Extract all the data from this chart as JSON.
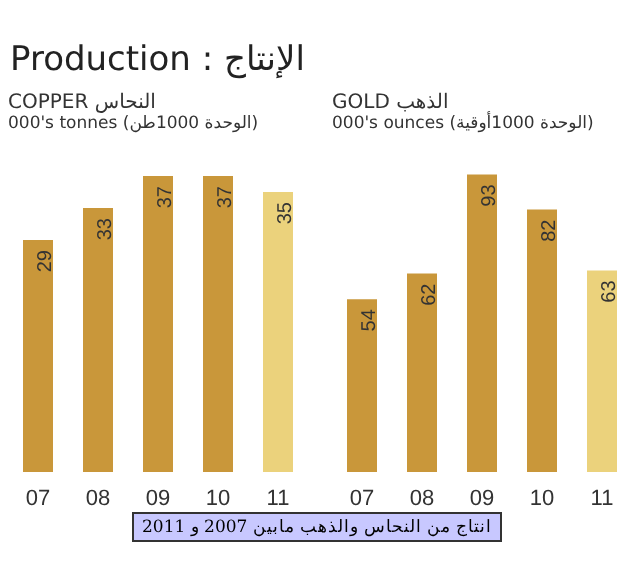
{
  "chart_data": [
    {
      "type": "bar",
      "title": "Production : الإنتاج",
      "subtitle": "COPPER  النحاس",
      "ylabel": "000's tonnes  (الوحدة 1000طن)",
      "categories": [
        "07",
        "08",
        "09",
        "10",
        "11"
      ],
      "values": [
        29,
        33,
        37,
        37,
        35
      ],
      "colors": [
        "#c9973a",
        "#c9973a",
        "#c9973a",
        "#c9973a",
        "#ebd27c"
      ],
      "data_labels": true,
      "annotations": [
        "انتاج من النحاس والذهب مابين 2007 و 2011"
      ]
    },
    {
      "type": "bar",
      "subtitle": "GOLD  الذهب",
      "ylabel": "000's ounces  (الوحدة 1000أوقية)",
      "categories": [
        "07",
        "08",
        "09",
        "10",
        "11"
      ],
      "values": [
        54,
        62,
        93,
        82,
        63
      ],
      "colors": [
        "#c9973a",
        "#c9973a",
        "#c9973a",
        "#c9973a",
        "#ebd27c"
      ],
      "data_labels": true
    }
  ]
}
